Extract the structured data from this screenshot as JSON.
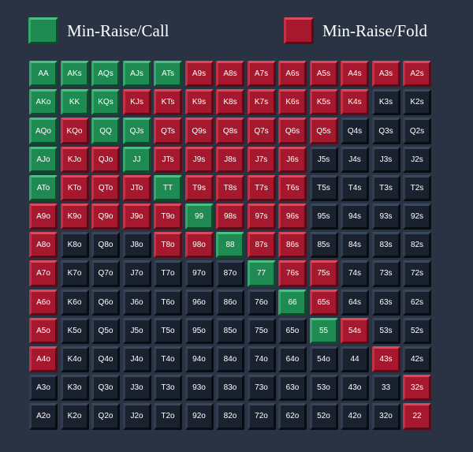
{
  "colors": {
    "call": "#1f8a52",
    "fold": "#a5182e",
    "none": "#1a2230"
  },
  "legend": {
    "call_label": "Min-Raise/Call",
    "fold_label": "Min-Raise/Fold"
  },
  "grid": [
    [
      "AA",
      "AKs",
      "AQs",
      "AJs",
      "ATs",
      "A9s",
      "A8s",
      "A7s",
      "A6s",
      "A5s",
      "A4s",
      "A3s",
      "A2s"
    ],
    [
      "AKo",
      "KK",
      "KQs",
      "KJs",
      "KTs",
      "K9s",
      "K8s",
      "K7s",
      "K6s",
      "K5s",
      "K4s",
      "K3s",
      "K2s"
    ],
    [
      "AQo",
      "KQo",
      "QQ",
      "QJs",
      "QTs",
      "Q9s",
      "Q8s",
      "Q7s",
      "Q6s",
      "Q5s",
      "Q4s",
      "Q3s",
      "Q2s"
    ],
    [
      "AJo",
      "KJo",
      "QJo",
      "JJ",
      "JTs",
      "J9s",
      "J8s",
      "J7s",
      "J6s",
      "J5s",
      "J4s",
      "J3s",
      "J2s"
    ],
    [
      "ATo",
      "KTo",
      "QTo",
      "JTo",
      "TT",
      "T9s",
      "T8s",
      "T7s",
      "T6s",
      "T5s",
      "T4s",
      "T3s",
      "T2s"
    ],
    [
      "A9o",
      "K9o",
      "Q9o",
      "J9o",
      "T9o",
      "99",
      "98s",
      "97s",
      "96s",
      "95s",
      "94s",
      "93s",
      "92s"
    ],
    [
      "A8o",
      "K8o",
      "Q8o",
      "J8o",
      "T8o",
      "98o",
      "88",
      "87s",
      "86s",
      "85s",
      "84s",
      "83s",
      "82s"
    ],
    [
      "A7o",
      "K7o",
      "Q7o",
      "J7o",
      "T7o",
      "97o",
      "87o",
      "77",
      "76s",
      "75s",
      "74s",
      "73s",
      "72s"
    ],
    [
      "A6o",
      "K6o",
      "Q6o",
      "J6o",
      "T6o",
      "96o",
      "86o",
      "76o",
      "66",
      "65s",
      "64s",
      "63s",
      "62s"
    ],
    [
      "A5o",
      "K5o",
      "Q5o",
      "J5o",
      "T5o",
      "95o",
      "85o",
      "75o",
      "65o",
      "55",
      "54s",
      "53s",
      "52s"
    ],
    [
      "A4o",
      "K4o",
      "Q4o",
      "J4o",
      "T4o",
      "94o",
      "84o",
      "74o",
      "64o",
      "54o",
      "44",
      "43s",
      "42s"
    ],
    [
      "A3o",
      "K3o",
      "Q3o",
      "J3o",
      "T3o",
      "93o",
      "83o",
      "73o",
      "63o",
      "53o",
      "43o",
      "33",
      "32s"
    ],
    [
      "A2o",
      "K2o",
      "Q2o",
      "J2o",
      "T2o",
      "92o",
      "82o",
      "72o",
      "62o",
      "52o",
      "42o",
      "32o",
      "22"
    ]
  ],
  "actions": [
    "gggggrrrrrrrr",
    "gggrrrrrrrrdd",
    "grggrrrrrrddd",
    "grrgrrrrrdddd",
    "grrrgrrrrdddd",
    "rrrrrgrrrdddd",
    "rdddrrgrrdddd",
    "rddddddgrrddd",
    "rdddddddgrddd",
    "rddddddddgrdd",
    "rddddddddddrd",
    "ddddddddddddr",
    "ddddddddddddr"
  ]
}
